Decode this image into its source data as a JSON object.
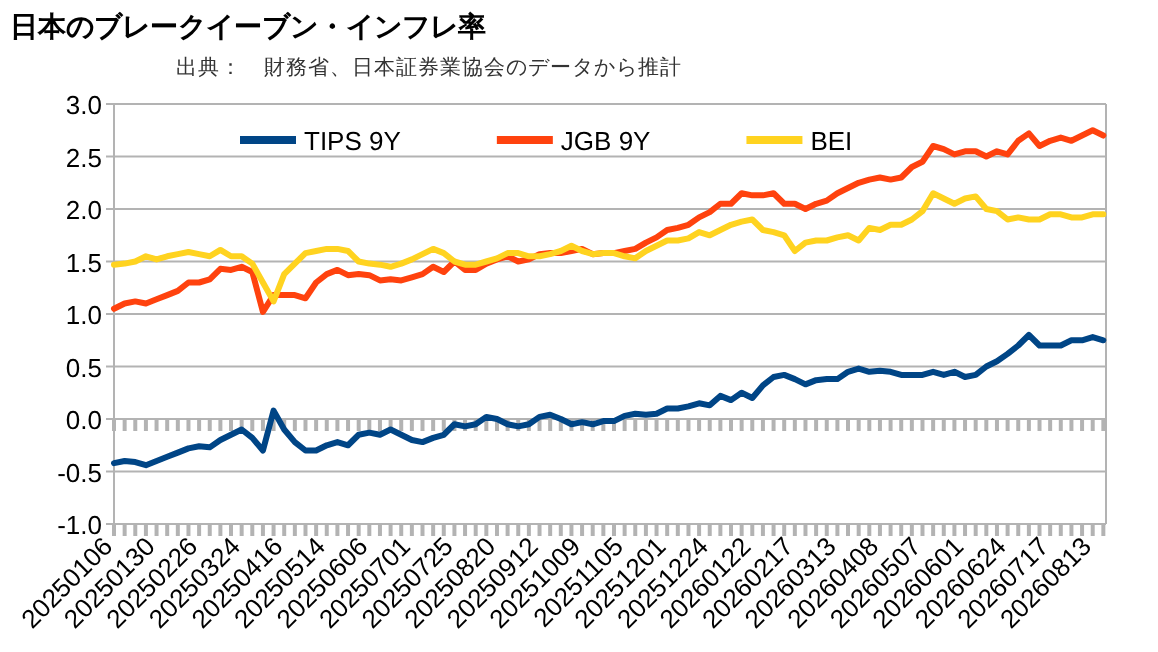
{
  "chart_data": {
    "type": "line",
    "title": "日本のブレークイーブン・インフレ率",
    "subtitle": "出典：　財務省、日本証券業協会のデータから推計",
    "categories": [
      "20250106",
      null,
      null,
      null,
      "20250130",
      null,
      null,
      null,
      "20250226",
      null,
      null,
      null,
      "20250324",
      null,
      null,
      null,
      "20250416",
      null,
      null,
      null,
      "20250514",
      null,
      null,
      null,
      "20250606",
      null,
      null,
      null,
      "20250701",
      null,
      null,
      null,
      "20250725",
      null,
      null,
      null,
      "20250820",
      null,
      null,
      null,
      "20250912",
      null,
      null,
      null,
      "20251009",
      null,
      null,
      null,
      "20251105",
      null,
      null,
      null,
      "20251201",
      null,
      null,
      null,
      "20251224",
      null,
      null,
      null,
      "20260122",
      null,
      null,
      null,
      "20260217",
      null,
      null,
      null,
      "20260313",
      null,
      null,
      null,
      "20260408",
      null,
      null,
      null,
      "20260507",
      null,
      null,
      null,
      "20260601",
      null,
      null,
      null,
      "20260624",
      null,
      null,
      null,
      "20260717",
      null,
      null,
      null,
      "20260813",
      null
    ],
    "series": [
      {
        "name": "TIPS 9Y",
        "color": "#004586",
        "values": [
          -0.42,
          -0.4,
          -0.41,
          -0.44,
          -0.4,
          -0.36,
          -0.32,
          -0.28,
          -0.26,
          -0.27,
          -0.2,
          -0.15,
          -0.1,
          -0.18,
          -0.3,
          0.08,
          -0.1,
          -0.22,
          -0.3,
          -0.3,
          -0.25,
          -0.22,
          -0.25,
          -0.15,
          -0.13,
          -0.15,
          -0.1,
          -0.15,
          -0.2,
          -0.22,
          -0.18,
          -0.15,
          -0.05,
          -0.07,
          -0.05,
          0.02,
          0.0,
          -0.05,
          -0.07,
          -0.05,
          0.02,
          0.04,
          0.0,
          -0.05,
          -0.03,
          -0.05,
          -0.02,
          -0.02,
          0.03,
          0.05,
          0.04,
          0.05,
          0.1,
          0.1,
          0.12,
          0.15,
          0.13,
          0.22,
          0.18,
          0.25,
          0.2,
          0.32,
          0.4,
          0.42,
          0.38,
          0.33,
          0.37,
          0.38,
          0.38,
          0.45,
          0.48,
          0.45,
          0.46,
          0.45,
          0.42,
          0.42,
          0.42,
          0.45,
          0.42,
          0.45,
          0.4,
          0.42,
          0.5,
          0.55,
          0.62,
          0.7,
          0.8,
          0.7,
          0.7,
          0.7,
          0.75,
          0.75,
          0.78,
          0.75
        ]
      },
      {
        "name": "JGB 9Y",
        "color": "#ff420e",
        "values": [
          1.05,
          1.1,
          1.12,
          1.1,
          1.14,
          1.18,
          1.22,
          1.3,
          1.3,
          1.33,
          1.43,
          1.42,
          1.45,
          1.4,
          1.02,
          1.18,
          1.18,
          1.18,
          1.15,
          1.3,
          1.38,
          1.42,
          1.37,
          1.38,
          1.37,
          1.32,
          1.33,
          1.32,
          1.35,
          1.38,
          1.45,
          1.4,
          1.5,
          1.42,
          1.42,
          1.48,
          1.52,
          1.55,
          1.5,
          1.52,
          1.57,
          1.58,
          1.58,
          1.6,
          1.62,
          1.57,
          1.58,
          1.58,
          1.6,
          1.62,
          1.68,
          1.73,
          1.8,
          1.82,
          1.85,
          1.92,
          1.97,
          2.05,
          2.05,
          2.15,
          2.13,
          2.13,
          2.15,
          2.05,
          2.05,
          2.0,
          2.05,
          2.08,
          2.15,
          2.2,
          2.25,
          2.28,
          2.3,
          2.28,
          2.3,
          2.4,
          2.45,
          2.6,
          2.57,
          2.52,
          2.55,
          2.55,
          2.5,
          2.55,
          2.52,
          2.65,
          2.72,
          2.6,
          2.65,
          2.68,
          2.65,
          2.7,
          2.75,
          2.7
        ]
      },
      {
        "name": "BEI",
        "color": "#ffd320",
        "values": [
          1.47,
          1.48,
          1.5,
          1.55,
          1.52,
          1.55,
          1.57,
          1.59,
          1.57,
          1.55,
          1.61,
          1.55,
          1.55,
          1.48,
          1.3,
          1.12,
          1.38,
          1.48,
          1.58,
          1.6,
          1.62,
          1.62,
          1.6,
          1.5,
          1.48,
          1.47,
          1.45,
          1.48,
          1.52,
          1.57,
          1.62,
          1.58,
          1.5,
          1.47,
          1.47,
          1.5,
          1.53,
          1.58,
          1.58,
          1.55,
          1.55,
          1.57,
          1.6,
          1.65,
          1.6,
          1.57,
          1.58,
          1.58,
          1.55,
          1.53,
          1.6,
          1.65,
          1.7,
          1.7,
          1.72,
          1.78,
          1.75,
          1.8,
          1.85,
          1.88,
          1.9,
          1.8,
          1.78,
          1.75,
          1.6,
          1.68,
          1.7,
          1.7,
          1.73,
          1.75,
          1.7,
          1.82,
          1.8,
          1.85,
          1.85,
          1.9,
          1.98,
          2.15,
          2.1,
          2.05,
          2.1,
          2.12,
          2.0,
          1.98,
          1.9,
          1.92,
          1.9,
          1.9,
          1.95,
          1.95,
          1.92,
          1.92,
          1.95,
          1.95
        ]
      }
    ],
    "ylim": [
      -1,
      3
    ],
    "yticks": [
      {
        "value": -1,
        "label": "-1.0"
      },
      {
        "value": -0.5,
        "label": "-0.5"
      },
      {
        "value": 0,
        "label": "0.0"
      },
      {
        "value": 0.5,
        "label": "0.5"
      },
      {
        "value": 1,
        "label": "1.0"
      },
      {
        "value": 1.5,
        "label": "1.5"
      },
      {
        "value": 2,
        "label": "2.0"
      },
      {
        "value": 2.5,
        "label": "2.5"
      },
      {
        "value": 3,
        "label": "3.0"
      }
    ],
    "grid": "y",
    "legend": "top",
    "marker": "none",
    "line_style": "solid"
  }
}
